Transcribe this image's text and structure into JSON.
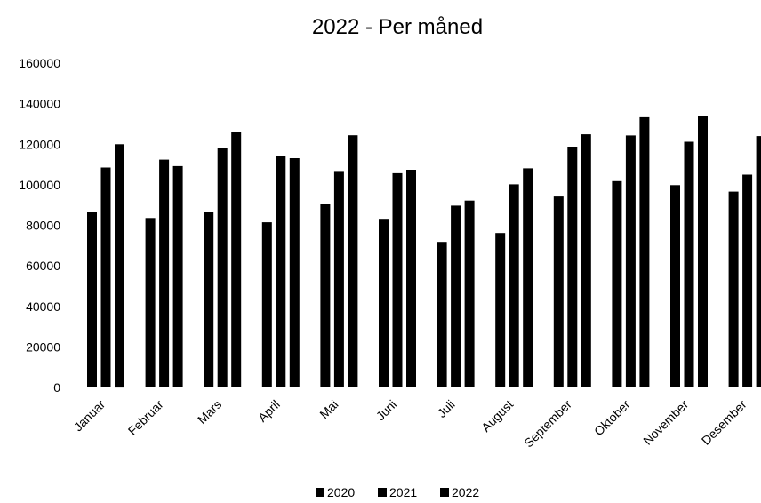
{
  "chart_data": {
    "type": "bar",
    "title": "2022 - Per måned",
    "xlabel": "",
    "ylabel": "",
    "ylim": [
      0,
      160000
    ],
    "yticks": [
      0,
      20000,
      40000,
      60000,
      80000,
      100000,
      120000,
      140000,
      160000
    ],
    "grid": false,
    "legend_position": "bottom",
    "colors": [
      "#000000",
      "#000000",
      "#000000"
    ],
    "categories": [
      "Januar",
      "Februar",
      "Mars",
      "April",
      "Mai",
      "Juni",
      "Juli",
      "August",
      "September",
      "Oktober",
      "November",
      "Desember"
    ],
    "series": [
      {
        "name": "2020",
        "values": [
          86800,
          83600,
          86800,
          81500,
          90700,
          83200,
          71800,
          76200,
          94200,
          101800,
          99800,
          96600
        ]
      },
      {
        "name": "2021",
        "values": [
          108500,
          112400,
          117900,
          114000,
          106800,
          105700,
          89700,
          100200,
          118800,
          124300,
          121200,
          105000
        ]
      },
      {
        "name": "2022",
        "values": [
          120000,
          109200,
          125800,
          113100,
          124400,
          107400,
          92200,
          108100,
          124900,
          133300,
          134100,
          124000
        ]
      }
    ]
  }
}
